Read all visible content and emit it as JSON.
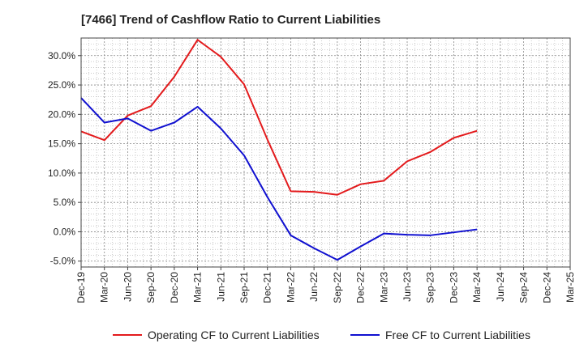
{
  "chart_data": {
    "type": "line",
    "title": "[7466]  Trend of Cashflow Ratio to Current Liabilities",
    "xlabel": "",
    "ylabel": "",
    "categories": [
      "Dec-19",
      "Mar-20",
      "Jun-20",
      "Sep-20",
      "Dec-20",
      "Mar-21",
      "Jun-21",
      "Sep-21",
      "Dec-21",
      "Mar-22",
      "Jun-22",
      "Sep-22",
      "Dec-22",
      "Mar-23",
      "Jun-23",
      "Sep-23",
      "Dec-23",
      "Mar-24",
      "Jun-24",
      "Sep-24",
      "Dec-24",
      "Mar-25"
    ],
    "ylim": [
      -6.0,
      33.0
    ],
    "yticks": [
      -5,
      0,
      5,
      10,
      15,
      20,
      25,
      30
    ],
    "ytick_labels": [
      "-5.0%",
      "0.0%",
      "5.0%",
      "10.0%",
      "15.0%",
      "20.0%",
      "25.0%",
      "30.0%"
    ],
    "grid": true,
    "legend_position": "bottom",
    "series": [
      {
        "name": "Operating CF to Current Liabilities",
        "color": "#e31a1c",
        "values": [
          17.1,
          15.6,
          19.8,
          21.4,
          26.4,
          32.7,
          29.8,
          25.1,
          15.7,
          6.9,
          6.8,
          6.3,
          8.1,
          8.7,
          12.0,
          13.6,
          16.0,
          17.2,
          null,
          null,
          null,
          null
        ]
      },
      {
        "name": "Free CF to Current Liabilities",
        "color": "#1010d0",
        "values": [
          22.8,
          18.6,
          19.3,
          17.2,
          18.6,
          21.3,
          17.6,
          13.0,
          5.9,
          -0.6,
          -2.8,
          -4.8,
          -2.5,
          -0.3,
          -0.5,
          -0.6,
          -0.1,
          0.4,
          null,
          null,
          null,
          null
        ]
      }
    ]
  }
}
